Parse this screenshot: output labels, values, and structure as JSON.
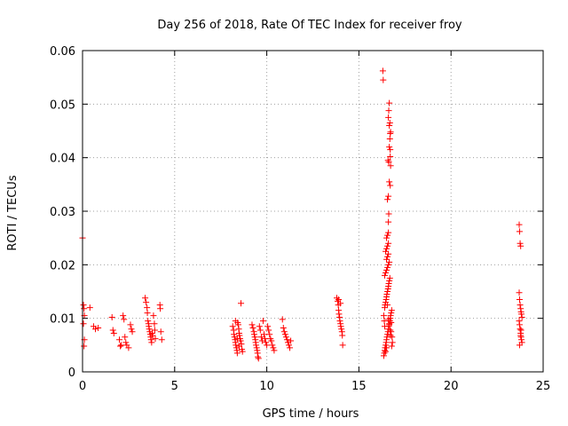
{
  "chart_data": {
    "type": "scatter",
    "title": "Day 256 of 2018, Rate Of TEC Index for receiver froy",
    "xlabel": "GPS time / hours",
    "ylabel": "ROTI / TECUs",
    "xlim": [
      0,
      25
    ],
    "ylim": [
      0,
      0.06
    ],
    "x_ticks": [
      0,
      5,
      10,
      15,
      20,
      25
    ],
    "x_tick_labels": [
      "0",
      "5",
      "10",
      "15",
      "20",
      "25"
    ],
    "y_ticks": [
      0,
      0.01,
      0.02,
      0.03,
      0.04,
      0.05,
      0.06
    ],
    "y_tick_labels": [
      "0",
      "0.01",
      "0.02",
      "0.03",
      "0.04",
      "0.05",
      "0.06"
    ],
    "grid": true,
    "marker": "+",
    "color": "#ff0000",
    "series": [
      {
        "name": "ROTI",
        "points": [
          [
            0.0,
            0.025
          ],
          [
            0.05,
            0.0125
          ],
          [
            0.08,
            0.0118
          ],
          [
            0.1,
            0.0105
          ],
          [
            0.05,
            0.009
          ],
          [
            0.1,
            0.006
          ],
          [
            0.08,
            0.0048
          ],
          [
            0.4,
            0.012
          ],
          [
            0.6,
            0.0085
          ],
          [
            0.7,
            0.008
          ],
          [
            0.85,
            0.0082
          ],
          [
            1.6,
            0.0102
          ],
          [
            1.65,
            0.0078
          ],
          [
            1.7,
            0.0072
          ],
          [
            2.0,
            0.006
          ],
          [
            2.05,
            0.0048
          ],
          [
            2.1,
            0.005
          ],
          [
            2.2,
            0.0105
          ],
          [
            2.25,
            0.0098
          ],
          [
            2.3,
            0.0065
          ],
          [
            2.35,
            0.0055
          ],
          [
            2.4,
            0.005
          ],
          [
            2.5,
            0.0045
          ],
          [
            2.6,
            0.0088
          ],
          [
            2.65,
            0.008
          ],
          [
            2.7,
            0.0075
          ],
          [
            3.4,
            0.0138
          ],
          [
            3.45,
            0.013
          ],
          [
            3.5,
            0.012
          ],
          [
            3.52,
            0.011
          ],
          [
            3.55,
            0.0095
          ],
          [
            3.58,
            0.009
          ],
          [
            3.6,
            0.0085
          ],
          [
            3.62,
            0.008
          ],
          [
            3.65,
            0.0075
          ],
          [
            3.68,
            0.007
          ],
          [
            3.7,
            0.0065
          ],
          [
            3.72,
            0.006
          ],
          [
            3.75,
            0.0055
          ],
          [
            3.78,
            0.0072
          ],
          [
            3.8,
            0.0068
          ],
          [
            3.85,
            0.0105
          ],
          [
            3.9,
            0.009
          ],
          [
            3.92,
            0.0078
          ],
          [
            3.95,
            0.0062
          ],
          [
            4.2,
            0.0125
          ],
          [
            4.22,
            0.0118
          ],
          [
            4.25,
            0.0075
          ],
          [
            4.3,
            0.006
          ],
          [
            8.15,
            0.0085
          ],
          [
            8.2,
            0.0078
          ],
          [
            8.22,
            0.007
          ],
          [
            8.25,
            0.0065
          ],
          [
            8.28,
            0.006
          ],
          [
            8.3,
            0.0055
          ],
          [
            8.32,
            0.005
          ],
          [
            8.35,
            0.0045
          ],
          [
            8.38,
            0.004
          ],
          [
            8.4,
            0.0035
          ],
          [
            8.42,
            0.0092
          ],
          [
            8.45,
            0.0088
          ],
          [
            8.48,
            0.008
          ],
          [
            8.5,
            0.0072
          ],
          [
            8.52,
            0.0068
          ],
          [
            8.55,
            0.0062
          ],
          [
            8.58,
            0.0058
          ],
          [
            8.6,
            0.0128
          ],
          [
            8.62,
            0.0052
          ],
          [
            8.65,
            0.0042
          ],
          [
            8.68,
            0.0038
          ],
          [
            8.3,
            0.0095
          ],
          [
            8.4,
            0.0062
          ],
          [
            8.5,
            0.0048
          ],
          [
            9.2,
            0.0088
          ],
          [
            9.25,
            0.0082
          ],
          [
            9.3,
            0.0075
          ],
          [
            9.32,
            0.007
          ],
          [
            9.35,
            0.0065
          ],
          [
            9.38,
            0.006
          ],
          [
            9.4,
            0.0055
          ],
          [
            9.42,
            0.005
          ],
          [
            9.45,
            0.0045
          ],
          [
            9.48,
            0.004
          ],
          [
            9.5,
            0.0035
          ],
          [
            9.52,
            0.0028
          ],
          [
            9.55,
            0.0025
          ],
          [
            9.6,
            0.0085
          ],
          [
            9.65,
            0.0078
          ],
          [
            9.7,
            0.0065
          ],
          [
            9.75,
            0.0058
          ],
          [
            9.8,
            0.0095
          ],
          [
            9.85,
            0.007
          ],
          [
            9.9,
            0.0062
          ],
          [
            9.95,
            0.0055
          ],
          [
            10.0,
            0.005
          ],
          [
            10.05,
            0.0085
          ],
          [
            10.1,
            0.0078
          ],
          [
            10.15,
            0.007
          ],
          [
            10.2,
            0.0062
          ],
          [
            10.25,
            0.0058
          ],
          [
            10.3,
            0.005
          ],
          [
            10.35,
            0.0045
          ],
          [
            10.4,
            0.004
          ],
          [
            10.85,
            0.0098
          ],
          [
            10.9,
            0.0082
          ],
          [
            10.95,
            0.0075
          ],
          [
            11.0,
            0.007
          ],
          [
            11.05,
            0.0065
          ],
          [
            11.1,
            0.006
          ],
          [
            11.15,
            0.0055
          ],
          [
            11.2,
            0.005
          ],
          [
            11.25,
            0.0045
          ],
          [
            11.3,
            0.0058
          ],
          [
            13.8,
            0.0138
          ],
          [
            13.85,
            0.0132
          ],
          [
            13.88,
            0.0125
          ],
          [
            13.9,
            0.0115
          ],
          [
            13.92,
            0.0108
          ],
          [
            13.95,
            0.0102
          ],
          [
            13.97,
            0.0095
          ],
          [
            14.0,
            0.009
          ],
          [
            14.02,
            0.0085
          ],
          [
            14.05,
            0.008
          ],
          [
            14.08,
            0.0075
          ],
          [
            14.1,
            0.0068
          ],
          [
            14.12,
            0.005
          ],
          [
            13.9,
            0.0135
          ],
          [
            14.0,
            0.0128
          ],
          [
            16.3,
            0.0562
          ],
          [
            16.32,
            0.0545
          ],
          [
            16.35,
            0.003
          ],
          [
            16.38,
            0.0035
          ],
          [
            16.4,
            0.004
          ],
          [
            16.42,
            0.0045
          ],
          [
            16.45,
            0.005
          ],
          [
            16.48,
            0.0055
          ],
          [
            16.5,
            0.006
          ],
          [
            16.52,
            0.0065
          ],
          [
            16.55,
            0.007
          ],
          [
            16.58,
            0.0075
          ],
          [
            16.6,
            0.008
          ],
          [
            16.62,
            0.0085
          ],
          [
            16.65,
            0.009
          ],
          [
            16.68,
            0.0095
          ],
          [
            16.7,
            0.01
          ],
          [
            16.72,
            0.0105
          ],
          [
            16.75,
            0.011
          ],
          [
            16.78,
            0.0115
          ],
          [
            16.4,
            0.012
          ],
          [
            16.42,
            0.0125
          ],
          [
            16.45,
            0.013
          ],
          [
            16.48,
            0.0135
          ],
          [
            16.5,
            0.014
          ],
          [
            16.52,
            0.0145
          ],
          [
            16.55,
            0.015
          ],
          [
            16.58,
            0.0155
          ],
          [
            16.6,
            0.016
          ],
          [
            16.62,
            0.0165
          ],
          [
            16.65,
            0.017
          ],
          [
            16.68,
            0.0175
          ],
          [
            16.4,
            0.018
          ],
          [
            16.45,
            0.0185
          ],
          [
            16.5,
            0.019
          ],
          [
            16.55,
            0.0195
          ],
          [
            16.6,
            0.02
          ],
          [
            16.65,
            0.0205
          ],
          [
            16.5,
            0.021
          ],
          [
            16.55,
            0.0215
          ],
          [
            16.6,
            0.022
          ],
          [
            16.45,
            0.0225
          ],
          [
            16.5,
            0.023
          ],
          [
            16.55,
            0.0235
          ],
          [
            16.6,
            0.024
          ],
          [
            16.5,
            0.025
          ],
          [
            16.55,
            0.0255
          ],
          [
            16.6,
            0.026
          ],
          [
            16.6,
            0.028
          ],
          [
            16.62,
            0.0295
          ],
          [
            16.55,
            0.0322
          ],
          [
            16.6,
            0.0328
          ],
          [
            16.65,
            0.0355
          ],
          [
            16.7,
            0.0348
          ],
          [
            16.58,
            0.0395
          ],
          [
            16.62,
            0.0392
          ],
          [
            16.7,
            0.0402
          ],
          [
            16.65,
            0.042
          ],
          [
            16.68,
            0.0435
          ],
          [
            16.7,
            0.0445
          ],
          [
            16.72,
            0.0448
          ],
          [
            16.65,
            0.046
          ],
          [
            16.68,
            0.0465
          ],
          [
            16.6,
            0.0475
          ],
          [
            16.62,
            0.0488
          ],
          [
            16.65,
            0.0502
          ],
          [
            16.7,
            0.0415
          ],
          [
            16.72,
            0.0385
          ],
          [
            16.35,
            0.0105
          ],
          [
            16.38,
            0.0095
          ],
          [
            16.4,
            0.0085
          ],
          [
            16.75,
            0.0075
          ],
          [
            16.8,
            0.0065
          ],
          [
            16.82,
            0.0055
          ],
          [
            16.78,
            0.0048
          ],
          [
            16.45,
            0.0038
          ],
          [
            16.5,
            0.0045
          ],
          [
            16.55,
            0.0125
          ],
          [
            16.6,
            0.0098
          ],
          [
            16.65,
            0.0088
          ],
          [
            16.7,
            0.0078
          ],
          [
            16.72,
            0.0068
          ],
          [
            16.75,
            0.0092
          ],
          [
            23.7,
            0.0275
          ],
          [
            23.72,
            0.0262
          ],
          [
            23.75,
            0.024
          ],
          [
            23.78,
            0.0235
          ],
          [
            23.7,
            0.0148
          ],
          [
            23.72,
            0.0135
          ],
          [
            23.75,
            0.0125
          ],
          [
            23.78,
            0.0118
          ],
          [
            23.8,
            0.0112
          ],
          [
            23.82,
            0.0108
          ],
          [
            23.85,
            0.0102
          ],
          [
            23.7,
            0.0095
          ],
          [
            23.72,
            0.0088
          ],
          [
            23.75,
            0.008
          ],
          [
            23.78,
            0.0072
          ],
          [
            23.8,
            0.0065
          ],
          [
            23.82,
            0.006
          ],
          [
            23.85,
            0.0055
          ],
          [
            23.72,
            0.005
          ],
          [
            23.78,
            0.0068
          ],
          [
            23.8,
            0.0078
          ]
        ]
      }
    ]
  }
}
